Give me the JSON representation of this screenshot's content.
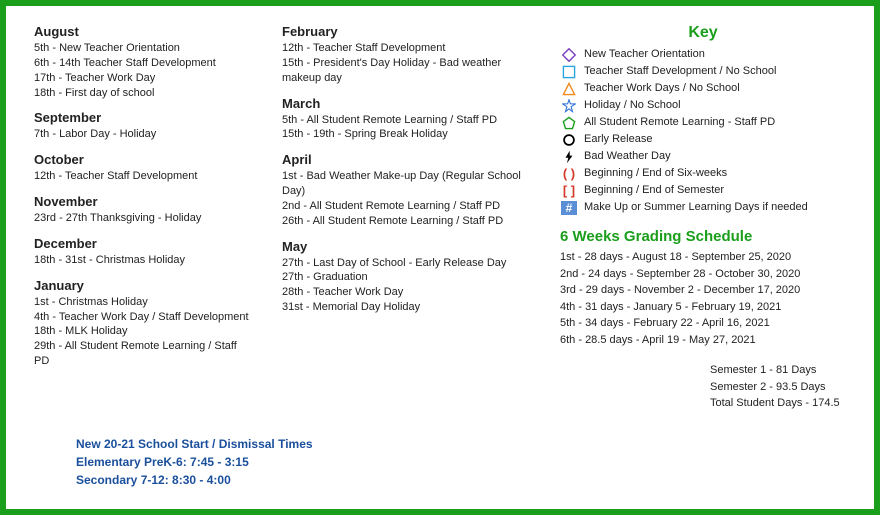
{
  "months_col1": [
    {
      "name": "August",
      "events": [
        "5th - New Teacher Orientation",
        "6th - 14th Teacher Staff Development",
        "17th - Teacher Work Day",
        "18th - First day of school"
      ]
    },
    {
      "name": "September",
      "events": [
        "7th - Labor Day - Holiday"
      ]
    },
    {
      "name": "October",
      "events": [
        "12th - Teacher Staff Development"
      ]
    },
    {
      "name": "November",
      "events": [
        "23rd - 27th Thanksgiving - Holiday"
      ]
    },
    {
      "name": "December",
      "events": [
        "18th - 31st - Christmas Holiday"
      ]
    },
    {
      "name": "January",
      "events": [
        "1st - Christmas Holiday",
        "4th - Teacher Work Day / Staff Development",
        "18th - MLK Holiday",
        "29th - All Student Remote Learning / Staff PD"
      ]
    }
  ],
  "months_col2": [
    {
      "name": "February",
      "events": [
        "12th - Teacher Staff Development",
        "15th - President's Day Holiday - Bad weather makeup day"
      ]
    },
    {
      "name": "March",
      "events": [
        "5th -  All Student Remote Learning / Staff PD",
        "15th - 19th - Spring Break Holiday"
      ]
    },
    {
      "name": "April",
      "events": [
        "1st -  Bad Weather Make-up Day (Regular School Day)",
        "2nd - All Student Remote Learning / Staff PD",
        "26th -  All Student Remote Learning / Staff PD"
      ]
    },
    {
      "name": "May",
      "events": [
        "27th - Last Day of School - Early Release Day",
        "27th - Graduation",
        "28th - Teacher Work Day",
        "31st - Memorial Day Holiday"
      ]
    }
  ],
  "key": {
    "title": "Key",
    "items": [
      {
        "icon": "diamond",
        "color": "#7a3fc1",
        "label": "New Teacher Orientation"
      },
      {
        "icon": "square",
        "color": "#2aa6e0",
        "label": "Teacher Staff Development / No School"
      },
      {
        "icon": "triangle",
        "color": "#f08a1d",
        "label": "Teacher Work Days / No School"
      },
      {
        "icon": "star",
        "color": "#2a6fd6",
        "label": "Holiday / No School"
      },
      {
        "icon": "pentagon",
        "color": "#1b9e1b",
        "label": "All Student Remote Learning - Staff PD"
      },
      {
        "icon": "circle",
        "color": "#000000",
        "label": "Early Release"
      },
      {
        "icon": "bolt",
        "color": "#000000",
        "label": "Bad Weather Day"
      },
      {
        "icon": "parens",
        "color": "#d43a2a",
        "label": "Beginning / End of Six-weeks"
      },
      {
        "icon": "brackets",
        "color": "#d43a2a",
        "label": "Beginning / End of Semester"
      },
      {
        "icon": "hash",
        "color": "#5a8fd6",
        "label": "Make Up or Summer Learning Days if needed"
      }
    ]
  },
  "grading": {
    "title": "6 Weeks Grading Schedule",
    "lines": [
      "1st - 28 days - August 18 - September 25, 2020",
      "2nd - 24 days - September 28 - October 30, 2020",
      "3rd - 29 days - November 2 - December 17, 2020",
      "4th - 31 days - January 5 - February 19, 2021",
      "5th - 34 days - February 22 - April 16, 2021",
      "6th - 28.5 days - April 19 - May 27, 2021"
    ]
  },
  "semesters": [
    "Semester 1 - 81 Days",
    "Semester 2 - 93.5 Days",
    "Total Student Days - 174.5"
  ],
  "start_times": [
    "New 20-21 School Start / Dismissal Times",
    "Elementary PreK-6: 7:45 - 3:15",
    "Secondary 7-12: 8:30 - 4:00"
  ]
}
